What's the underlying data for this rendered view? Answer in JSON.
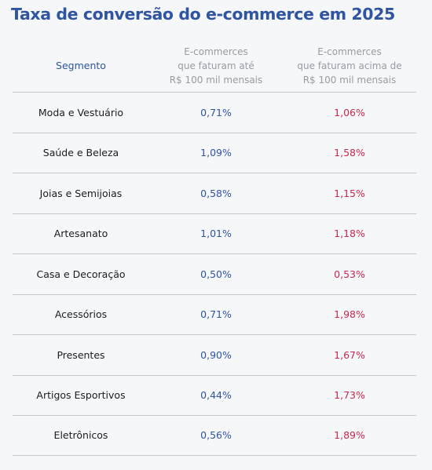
{
  "chart_data": {
    "type": "table",
    "title": "Taxa de conversão do e-commerce em 2025",
    "columns": [
      "Segmento",
      "E-commerces que faturam até R$ 100 mil mensais",
      "E-commerces que faturam acima de R$ 100 mil mensais"
    ],
    "header": {
      "segment": "Segmento",
      "col_a_lines": [
        "E-commerces",
        "que faturam até",
        "R$ 100 mil mensais"
      ],
      "col_b_lines": [
        "E-commerces",
        "que faturam acima de",
        "R$ 100 mil mensais"
      ]
    },
    "rows": [
      {
        "segment": "Moda e Vestuário",
        "a": "0,71%",
        "b": "1,06%"
      },
      {
        "segment": "Saúde e Beleza",
        "a": "1,09%",
        "b": "1,58%"
      },
      {
        "segment": "Joias e Semijoias",
        "a": "0,58%",
        "b": "1,15%"
      },
      {
        "segment": "Artesanato",
        "a": "1,01%",
        "b": "1,18%"
      },
      {
        "segment": "Casa e Decoração",
        "a": "0,50%",
        "b": "0,53%"
      },
      {
        "segment": "Acessórios",
        "a": "0,71%",
        "b": "1,98%"
      },
      {
        "segment": "Presentes",
        "a": "0,90%",
        "b": "1,67%"
      },
      {
        "segment": "Artigos Esportivos",
        "a": "0,44%",
        "b": "1,73%"
      },
      {
        "segment": "Eletrônicos",
        "a": "0,56%",
        "b": "1,89%"
      }
    ],
    "colors": {
      "title": "#2f54a0",
      "col_a_values": "#2f54a0",
      "col_b_values": "#c8284e",
      "header_muted": "#9a9aa3"
    }
  }
}
